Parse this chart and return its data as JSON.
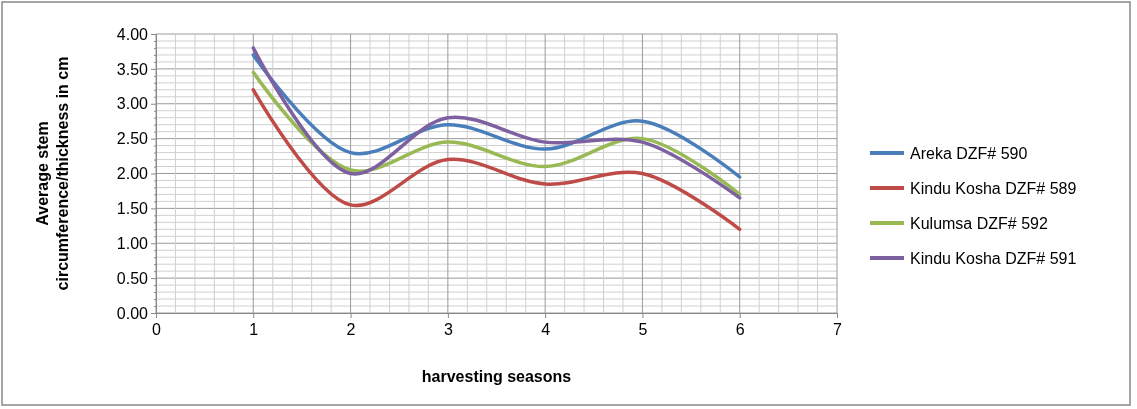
{
  "chart_data": {
    "type": "line",
    "xlabel": "harvesting seasons",
    "ylabel": "Average stem circumference/thickness in cm",
    "x": [
      1,
      2,
      3,
      4,
      5,
      6
    ],
    "series": [
      {
        "name": "Areka DZF# 590",
        "color": "#4a7ebb",
        "values": [
          3.7,
          2.3,
          2.7,
          2.35,
          2.75,
          1.95
        ]
      },
      {
        "name": "Kindu Kosha DZF# 589",
        "color": "#be4b48",
        "values": [
          3.2,
          1.55,
          2.2,
          1.85,
          2.0,
          1.2
        ]
      },
      {
        "name": "Kulumsa DZF# 592",
        "color": "#98b954",
        "values": [
          3.45,
          2.05,
          2.45,
          2.1,
          2.5,
          1.7
        ]
      },
      {
        "name": "Kindu Kosha DZF# 591",
        "color": "#7d60a0",
        "values": [
          3.8,
          2.0,
          2.8,
          2.45,
          2.45,
          1.65
        ]
      }
    ],
    "xlim": [
      0,
      7
    ],
    "xticks": [
      0,
      {
        "value": 0.2,
        "label": null
      },
      {
        "value": 0.4,
        "label": null
      },
      {
        "value": 0.6,
        "label": null
      },
      {
        "value": 0.8,
        "label": null
      },
      1,
      {
        "value": 1.2,
        "label": null
      },
      {
        "value": 1.4,
        "label": null
      },
      {
        "value": 1.6,
        "label": null
      },
      {
        "value": 1.8,
        "label": null
      },
      2,
      {
        "value": 2.2,
        "label": null
      },
      {
        "value": 2.4,
        "label": null
      },
      {
        "value": 2.6,
        "label": null
      },
      {
        "value": 2.8,
        "label": null
      },
      3,
      {
        "value": 3.2,
        "label": null
      },
      {
        "value": 3.4,
        "label": null
      },
      {
        "value": 3.6,
        "label": null
      },
      {
        "value": 3.8,
        "label": null
      },
      4,
      {
        "value": 4.2,
        "label": null
      },
      {
        "value": 4.4,
        "label": null
      },
      {
        "value": 4.6,
        "label": null
      },
      {
        "value": 4.8,
        "label": null
      },
      5,
      {
        "value": 5.2,
        "label": null
      },
      {
        "value": 5.4,
        "label": null
      },
      {
        "value": 5.6,
        "label": null
      },
      {
        "value": 5.8,
        "label": null
      },
      6,
      {
        "value": 6.2,
        "label": null
      },
      {
        "value": 6.4,
        "label": null
      },
      {
        "value": 6.6,
        "label": null
      },
      {
        "value": 6.8,
        "label": null
      },
      7
    ],
    "ylim": [
      0,
      4
    ],
    "yticks": [
      {
        "value": 0,
        "label": "0.00"
      },
      {
        "value": 0.1,
        "label": null
      },
      {
        "value": 0.2,
        "label": null
      },
      {
        "value": 0.3,
        "label": null
      },
      {
        "value": 0.4,
        "label": null
      },
      {
        "value": 0.5,
        "label": "0.50"
      },
      {
        "value": 0.6,
        "label": null
      },
      {
        "value": 0.7,
        "label": null
      },
      {
        "value": 0.8,
        "label": null
      },
      {
        "value": 0.9,
        "label": null
      },
      {
        "value": 1,
        "label": "1.00"
      },
      {
        "value": 1.1,
        "label": null
      },
      {
        "value": 1.2,
        "label": null
      },
      {
        "value": 1.3,
        "label": null
      },
      {
        "value": 1.4,
        "label": null
      },
      {
        "value": 1.5,
        "label": "1.50"
      },
      {
        "value": 1.6,
        "label": null
      },
      {
        "value": 1.7,
        "label": null
      },
      {
        "value": 1.8,
        "label": null
      },
      {
        "value": 1.9,
        "label": null
      },
      {
        "value": 2,
        "label": "2.00"
      },
      {
        "value": 2.1,
        "label": null
      },
      {
        "value": 2.2,
        "label": null
      },
      {
        "value": 2.3,
        "label": null
      },
      {
        "value": 2.4,
        "label": null
      },
      {
        "value": 2.5,
        "label": "2.50"
      },
      {
        "value": 2.6,
        "label": null
      },
      {
        "value": 2.7,
        "label": null
      },
      {
        "value": 2.8,
        "label": null
      },
      {
        "value": 2.9,
        "label": null
      },
      {
        "value": 3,
        "label": "3.00"
      },
      {
        "value": 3.1,
        "label": null
      },
      {
        "value": 3.2,
        "label": null
      },
      {
        "value": 3.3,
        "label": null
      },
      {
        "value": 3.4,
        "label": null
      },
      {
        "value": 3.5,
        "label": "3.50"
      },
      {
        "value": 3.6,
        "label": null
      },
      {
        "value": 3.7,
        "label": null
      },
      {
        "value": 3.8,
        "label": null
      },
      {
        "value": 3.9,
        "label": null
      },
      {
        "value": 4,
        "label": "4.00"
      }
    ],
    "grid": true,
    "legend": "right",
    "marker": "none",
    "line_style": "solid"
  }
}
